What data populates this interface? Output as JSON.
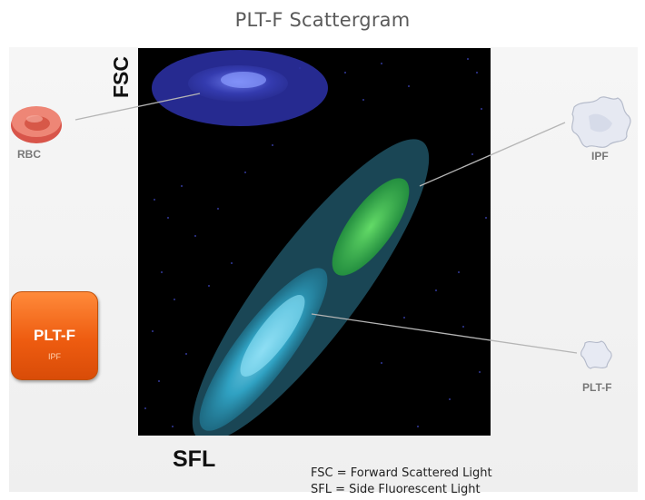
{
  "title": "PLT-F Scattergram",
  "axes": {
    "y_label": "FSC",
    "x_label": "SFL"
  },
  "cells": {
    "rbc": "RBC",
    "ipf": "IPF",
    "plt_f": "PLT-F"
  },
  "channel_box": {
    "title": "PLT-F",
    "subtitle": "IPF",
    "color": "#ee5c10"
  },
  "legend": [
    "FSC = Forward Scattered Light",
    "SFL = Side Fluorescent Light"
  ],
  "colors": {
    "rbc_cluster": "#3a3fc4",
    "plt_cluster": "#49c9ea",
    "ipf_cluster": "#3fcf3f",
    "plot_background": "#000000"
  }
}
